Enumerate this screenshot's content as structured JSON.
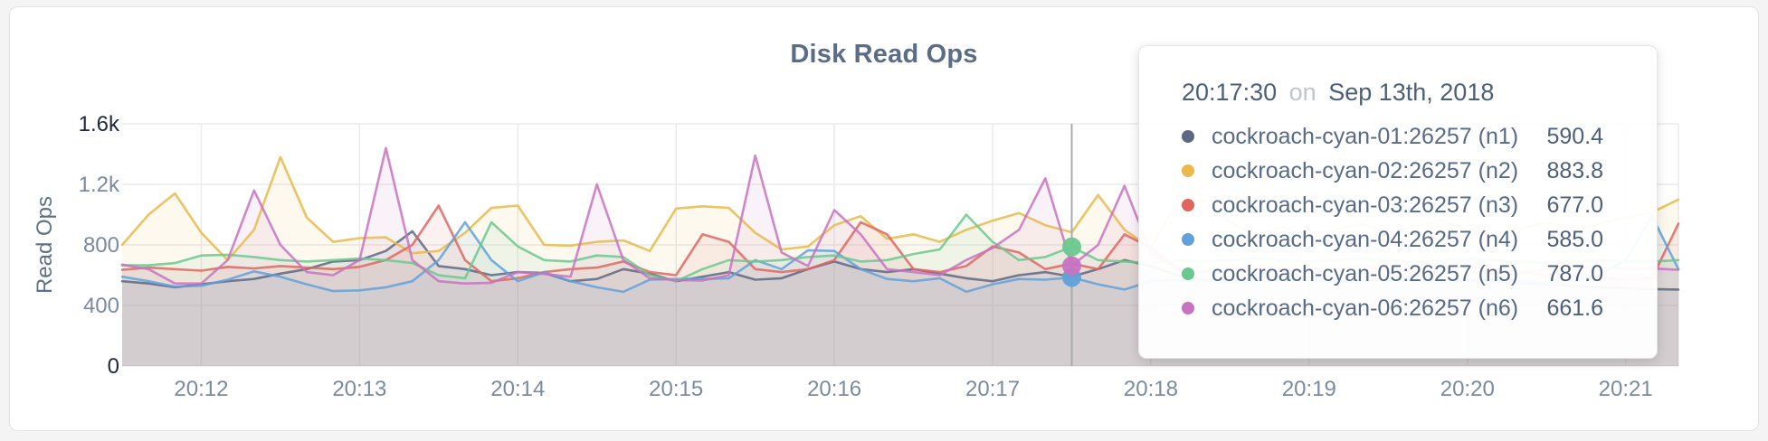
{
  "card": {
    "title": "Disk Read Ops"
  },
  "chart_data": {
    "type": "line",
    "title": "Disk Read Ops",
    "xlabel": "",
    "ylabel": "Read Ops",
    "ylim": [
      0,
      1600
    ],
    "grid": true,
    "legend_position": "tooltip",
    "x_start_time": "20:11:30",
    "x_step_seconds": 10,
    "x_ticks": [
      {
        "label": "20:12",
        "index": 3
      },
      {
        "label": "20:13",
        "index": 9
      },
      {
        "label": "20:14",
        "index": 15
      },
      {
        "label": "20:15",
        "index": 21
      },
      {
        "label": "20:16",
        "index": 27
      },
      {
        "label": "20:17",
        "index": 33
      },
      {
        "label": "20:18",
        "index": 39
      },
      {
        "label": "20:19",
        "index": 45
      },
      {
        "label": "20:20",
        "index": 51
      },
      {
        "label": "20:21",
        "index": 57
      }
    ],
    "y_ticks": [
      {
        "value": 0,
        "label": "0",
        "emph": true
      },
      {
        "value": 400,
        "label": "400",
        "emph": false
      },
      {
        "value": 800,
        "label": "800",
        "emph": false
      },
      {
        "value": 1200,
        "label": "1.2k",
        "emph": false
      },
      {
        "value": 1600,
        "label": "1.6k",
        "emph": true
      }
    ],
    "hover": {
      "index": 36,
      "time": "20:17:30",
      "connector": "on",
      "date": "Sep 13th, 2018",
      "line_color": "#ababab",
      "dot_series": [
        "n4",
        "n5",
        "n6"
      ]
    },
    "series": [
      {
        "id": "n1",
        "label": "cockroach-cyan-01:26257 (n1)",
        "color": "#5d6885",
        "hover_value": "590.4",
        "values": [
          560,
          545,
          520,
          540,
          560,
          575,
          610,
          640,
          690,
          700,
          760,
          890,
          660,
          640,
          600,
          620,
          615,
          560,
          575,
          640,
          610,
          560,
          590,
          620,
          570,
          580,
          640,
          690,
          640,
          620,
          640,
          610,
          580,
          560,
          600,
          620,
          590.4,
          640,
          700,
          660,
          600,
          570,
          560,
          580,
          600,
          590,
          570,
          560,
          580,
          600,
          590,
          570,
          560,
          550,
          540,
          530,
          520,
          515,
          508,
          505
        ]
      },
      {
        "id": "n2",
        "label": "cockroach-cyan-02:26257 (n2)",
        "color": "#e8ba4b",
        "hover_value": "883.8",
        "values": [
          800,
          1000,
          1140,
          880,
          700,
          900,
          1380,
          980,
          820,
          845,
          850,
          745,
          760,
          880,
          1045,
          1060,
          800,
          795,
          820,
          830,
          760,
          1040,
          1055,
          1045,
          880,
          770,
          790,
          930,
          990,
          840,
          870,
          820,
          900,
          960,
          1010,
          930,
          883.8,
          1130,
          900,
          780,
          1080,
          1100,
          950,
          870,
          920,
          860,
          900,
          940,
          880,
          920,
          960,
          900,
          870,
          910,
          950,
          900,
          940,
          980,
          1015,
          1100
        ]
      },
      {
        "id": "n3",
        "label": "cockroach-cyan-03:26257 (n3)",
        "color": "#e06660",
        "hover_value": "677.0",
        "values": [
          635,
          650,
          640,
          630,
          655,
          645,
          660,
          650,
          640,
          655,
          700,
          800,
          1060,
          700,
          560,
          580,
          620,
          640,
          650,
          690,
          620,
          600,
          870,
          820,
          640,
          620,
          640,
          700,
          950,
          870,
          640,
          620,
          660,
          790,
          750,
          640,
          677,
          640,
          870,
          780,
          650,
          620,
          640,
          660,
          640,
          620,
          640,
          660,
          640,
          620,
          640,
          660,
          640,
          620,
          600,
          590,
          580,
          570,
          580,
          940
        ]
      },
      {
        "id": "n4",
        "label": "cockroach-cyan-04:26257 (n4)",
        "color": "#62a1d9",
        "hover_value": "585.0",
        "values": [
          590,
          560,
          525,
          530,
          570,
          625,
          590,
          540,
          495,
          500,
          520,
          560,
          700,
          950,
          700,
          560,
          620,
          560,
          520,
          490,
          570,
          575,
          575,
          580,
          700,
          640,
          765,
          760,
          640,
          575,
          560,
          580,
          490,
          540,
          575,
          570,
          585,
          540,
          505,
          560,
          570,
          560,
          550,
          560,
          570,
          560,
          550,
          560,
          570,
          560,
          550,
          560,
          570,
          560,
          550,
          560,
          600,
          700,
          990,
          640
        ]
      },
      {
        "id": "n5",
        "label": "cockroach-cyan-05:26257 (n5)",
        "color": "#6cc88e",
        "hover_value": "787.0",
        "values": [
          665,
          665,
          680,
          730,
          735,
          720,
          700,
          690,
          700,
          710,
          700,
          680,
          600,
          580,
          950,
          790,
          700,
          690,
          730,
          720,
          600,
          560,
          640,
          700,
          690,
          700,
          720,
          730,
          690,
          700,
          740,
          770,
          1000,
          820,
          700,
          720,
          787,
          700,
          690,
          680,
          700,
          690,
          700,
          710,
          700,
          690,
          700,
          710,
          700,
          690,
          700,
          710,
          700,
          690,
          680,
          690,
          700,
          690,
          690,
          700
        ]
      },
      {
        "id": "n6",
        "label": "cockroach-cyan-06:26257 (n6)",
        "color": "#c873c1",
        "hover_value": "661.6",
        "values": [
          670,
          640,
          545,
          545,
          700,
          1160,
          800,
          620,
          600,
          700,
          1440,
          700,
          560,
          545,
          550,
          620,
          608,
          590,
          1200,
          700,
          580,
          567,
          565,
          600,
          1390,
          750,
          660,
          1030,
          870,
          640,
          620,
          600,
          700,
          780,
          900,
          1240,
          661.6,
          800,
          1190,
          750,
          640,
          620,
          640,
          660,
          640,
          620,
          640,
          660,
          640,
          620,
          640,
          660,
          640,
          620,
          640,
          660,
          650,
          645,
          645,
          635
        ]
      }
    ]
  }
}
